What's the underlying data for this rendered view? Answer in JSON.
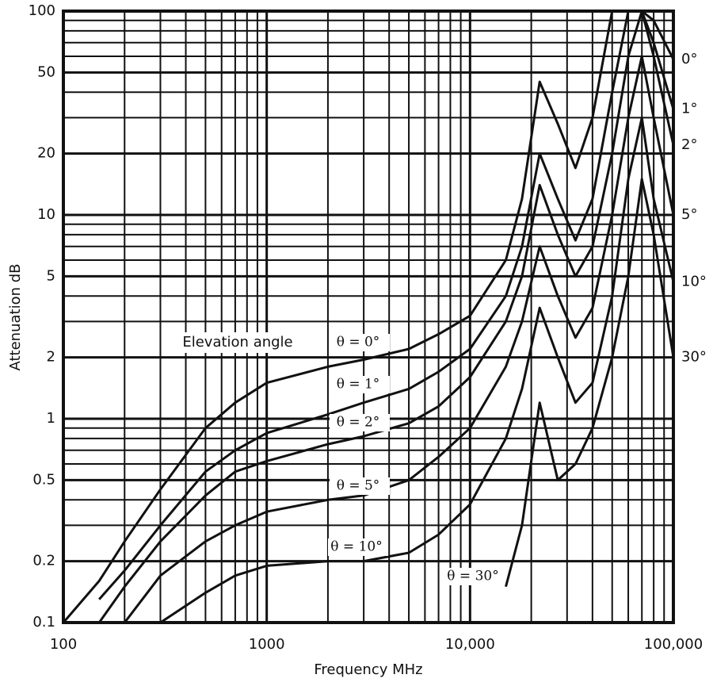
{
  "chart_data": {
    "type": "line",
    "x_label": "Frequency MHz",
    "y_label": "Attenuation dB",
    "annotation": "Elevation angle",
    "x_log": true,
    "y_log": true,
    "grid": true,
    "minor_grid": true,
    "xlim": [
      100,
      100000
    ],
    "ylim": [
      0.1,
      100
    ],
    "xticks": [
      100,
      1000,
      {
        "value": 10000,
        "label": "10,000"
      },
      {
        "value": 100000,
        "label": "100,000"
      }
    ],
    "yticks": [
      0.1,
      0.2,
      0.5,
      1,
      2,
      5,
      10,
      20,
      50,
      100
    ],
    "x": [
      100,
      150,
      200,
      300,
      500,
      700,
      1000,
      2000,
      3000,
      5000,
      7000,
      10000,
      15000,
      18000,
      22000,
      27000,
      33000,
      40000,
      50000,
      60000,
      70000,
      80000,
      100000
    ],
    "series": [
      {
        "name": "θ = 0°",
        "end_label": "0°",
        "color": "#111111",
        "values": [
          0.1,
          0.16,
          0.25,
          0.45,
          0.9,
          1.2,
          1.5,
          1.8,
          1.95,
          2.2,
          2.6,
          3.2,
          6,
          12,
          45,
          28,
          17,
          30,
          100,
          100,
          100,
          90,
          58
        ]
      },
      {
        "name": "θ = 1°",
        "end_label": "1°",
        "color": "#111111",
        "values": [
          null,
          0.13,
          0.18,
          0.3,
          0.55,
          0.7,
          0.85,
          1.05,
          1.2,
          1.4,
          1.7,
          2.2,
          4,
          7,
          20,
          12,
          7.5,
          12,
          40,
          100,
          100,
          70,
          33
        ]
      },
      {
        "name": "θ = 2°",
        "end_label": "2°",
        "color": "#111111",
        "values": [
          null,
          0.1,
          0.15,
          0.25,
          0.42,
          0.55,
          0.62,
          0.75,
          0.82,
          0.95,
          1.15,
          1.6,
          3,
          5,
          14,
          8,
          5,
          7,
          20,
          60,
          100,
          60,
          22
        ]
      },
      {
        "name": "θ = 5°",
        "end_label": "5°",
        "color": "#111111",
        "values": [
          null,
          null,
          0.1,
          0.17,
          0.25,
          0.3,
          0.35,
          0.4,
          0.42,
          0.5,
          0.65,
          0.9,
          1.8,
          3,
          7,
          4,
          2.5,
          3.5,
          10,
          30,
          60,
          30,
          10
        ]
      },
      {
        "name": "θ = 10°",
        "end_label": "10°",
        "color": "#111111",
        "values": [
          null,
          null,
          null,
          0.1,
          0.14,
          0.17,
          0.19,
          0.2,
          0.2,
          0.22,
          0.27,
          0.38,
          0.8,
          1.4,
          3.5,
          2,
          1.2,
          1.5,
          4,
          15,
          30,
          12,
          4.7
        ]
      },
      {
        "name": "θ = 30°",
        "end_label": "30°",
        "color": "#111111",
        "values": [
          null,
          null,
          null,
          null,
          null,
          null,
          null,
          null,
          null,
          null,
          null,
          null,
          0.15,
          0.3,
          1.2,
          0.5,
          0.6,
          0.9,
          2,
          5,
          15,
          8,
          2
        ]
      }
    ]
  }
}
